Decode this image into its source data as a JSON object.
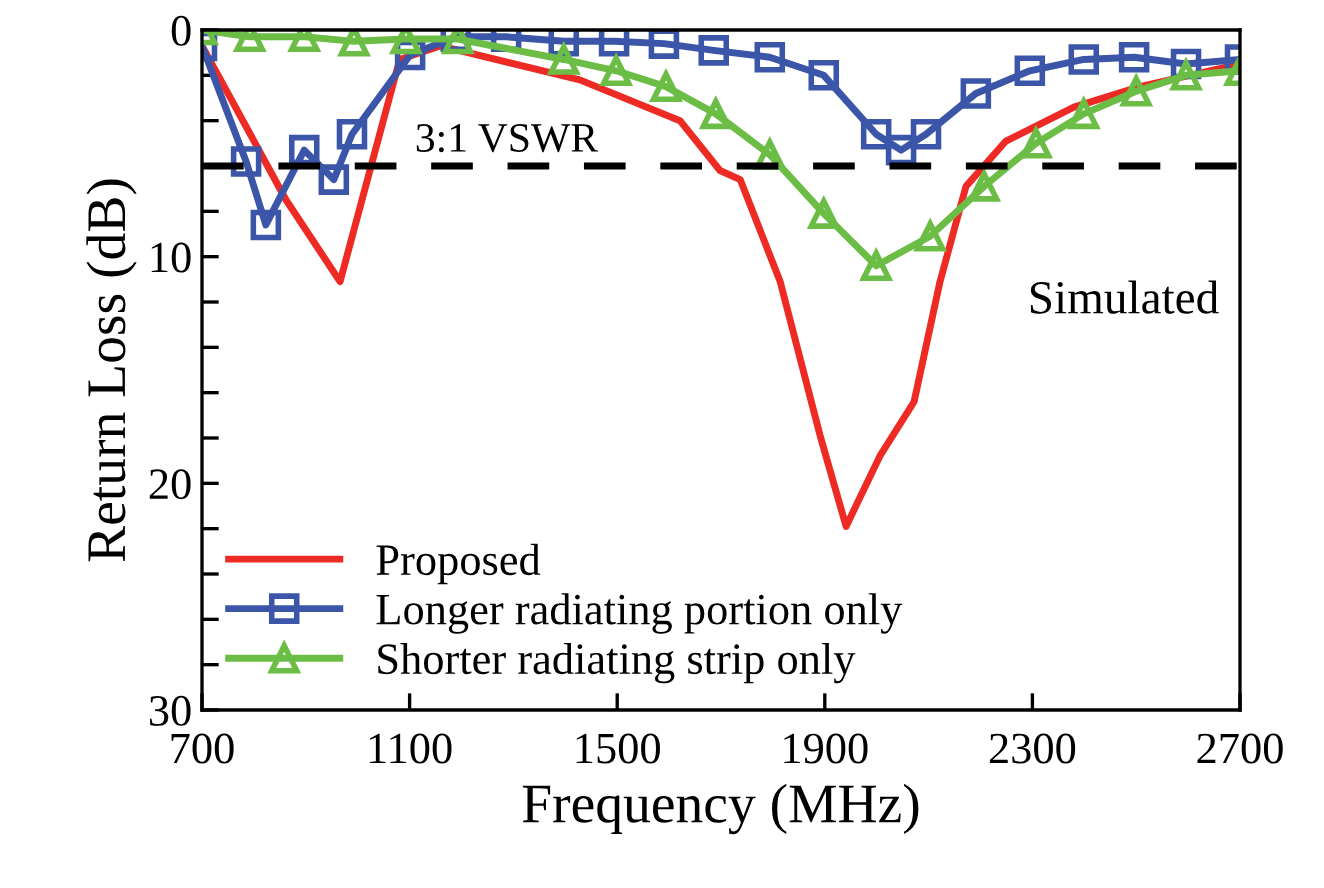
{
  "chart_data": {
    "type": "line",
    "xlabel": "Frequency (MHz)",
    "ylabel": "Return Loss (dB)",
    "xlim": [
      700,
      2700
    ],
    "xticks": [
      700,
      1100,
      1500,
      1900,
      2300,
      2700
    ],
    "ylim": [
      30,
      0
    ],
    "yticks": [
      0,
      {
        "value": 2,
        "label": null
      },
      {
        "value": 4,
        "label": null
      },
      {
        "value": 6,
        "label": null
      },
      {
        "value": 8,
        "label": null
      },
      10,
      {
        "value": 12,
        "label": null
      },
      {
        "value": 14,
        "label": null
      },
      {
        "value": 16,
        "label": null
      },
      {
        "value": 18,
        "label": null
      },
      20,
      {
        "value": 22,
        "label": null
      },
      {
        "value": 24,
        "label": null
      },
      {
        "value": 26,
        "label": null
      },
      {
        "value": 28,
        "label": null
      },
      30
    ],
    "grid": false,
    "legend": "bottom left",
    "ref_lines": [
      {
        "axis": "y",
        "value": 6,
        "color": "#000000",
        "line_style": "dashed"
      }
    ],
    "annotations": [
      "Simulated",
      {
        "text": "3:1 VSWR",
        "x": 1110,
        "y": 6
      }
    ],
    "series": [
      {
        "name": "Proposed",
        "color": "#ee2a24",
        "marker": "none",
        "x": [
          700,
          862,
          966,
          1081,
          1159,
          1428,
          1621,
          1698,
          1737,
          1814,
          1891,
          1941,
          2006,
          2072,
          2122,
          2172,
          2249,
          2380,
          2507,
          2700
        ],
        "values": [
          0.7,
          7.5,
          11.1,
          1.3,
          0.7,
          2.2,
          4.0,
          6.2,
          6.6,
          11.1,
          17.9,
          21.9,
          18.8,
          16.4,
          11.1,
          6.9,
          4.9,
          3.4,
          2.5,
          1.5
        ]
      },
      {
        "name": "Longer radiating portion only",
        "color": "#3b55a8",
        "marker": "square",
        "x": [
          700,
          785,
          823,
          897,
          954,
          989,
          1101,
          1189,
          1286,
          1397,
          1494,
          1590,
          1686,
          1794,
          1898,
          1999,
          2047,
          2095,
          2191,
          2295,
          2399,
          2496,
          2596,
          2700
        ],
        "values": [
          0.7,
          5.8,
          8.6,
          5.3,
          6.6,
          4.6,
          1.1,
          0.3,
          0.3,
          0.5,
          0.5,
          0.6,
          0.9,
          1.2,
          2.0,
          4.6,
          5.3,
          4.6,
          2.8,
          1.8,
          1.3,
          1.2,
          1.5,
          1.3
        ]
      },
      {
        "name": "Shorter radiating strip only",
        "color": "#6cbd45",
        "marker": "triangle",
        "x": [
          700,
          792,
          897,
          993,
          1093,
          1193,
          1397,
          1498,
          1594,
          1690,
          1794,
          1898,
          1999,
          2103,
          2207,
          2307,
          2399,
          2500,
          2596,
          2700
        ],
        "values": [
          0.0,
          0.3,
          0.3,
          0.5,
          0.4,
          0.4,
          1.3,
          1.8,
          2.5,
          3.7,
          5.5,
          8.1,
          10.4,
          9.1,
          6.9,
          5.0,
          3.7,
          2.7,
          2.0,
          1.8
        ]
      }
    ]
  }
}
